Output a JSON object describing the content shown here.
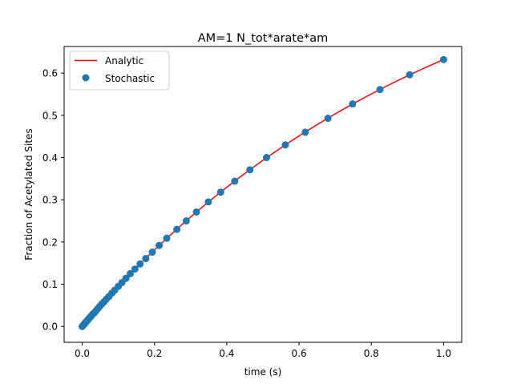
{
  "chart_data": {
    "type": "line",
    "title": "AM=1 N_tot*arate*am",
    "xlabel": "time (s)",
    "ylabel": "Fraction of Acetylated Sites",
    "xlim": [
      -0.05,
      1.05
    ],
    "ylim": [
      -0.0375,
      0.663
    ],
    "xticks": [
      "0.0",
      "0.2",
      "0.4",
      "0.6",
      "0.8",
      "1.0"
    ],
    "yticks": [
      "0.0",
      "0.1",
      "0.2",
      "0.3",
      "0.4",
      "0.5",
      "0.6"
    ],
    "grid": false,
    "legend_position": "upper-left",
    "series": [
      {
        "name": "Analytic",
        "kind": "line",
        "color": "#ff0000",
        "function": "1 - exp(-t)",
        "x_range": [
          0,
          1
        ]
      },
      {
        "name": "Stochastic",
        "kind": "scatter",
        "color": "#1f77b4",
        "x": [
          0.0,
          0.002,
          0.004,
          0.006,
          0.008,
          0.01,
          0.012,
          0.015,
          0.018,
          0.021,
          0.025,
          0.029,
          0.033,
          0.038,
          0.043,
          0.048,
          0.054,
          0.06,
          0.067,
          0.074,
          0.082,
          0.09,
          0.1,
          0.11,
          0.121,
          0.133,
          0.146,
          0.16,
          0.176,
          0.194,
          0.213,
          0.234,
          0.262,
          0.288,
          0.316,
          0.349,
          0.383,
          0.422,
          0.464,
          0.51,
          0.562,
          0.617,
          0.68,
          0.748,
          0.824,
          0.906,
          1.0
        ],
        "y": [
          0.0,
          0.002,
          0.004,
          0.006,
          0.008,
          0.01,
          0.012,
          0.015,
          0.018,
          0.021,
          0.025,
          0.029,
          0.032,
          0.037,
          0.042,
          0.047,
          0.053,
          0.058,
          0.065,
          0.071,
          0.079,
          0.086,
          0.095,
          0.104,
          0.114,
          0.125,
          0.136,
          0.148,
          0.161,
          0.176,
          0.192,
          0.209,
          0.23,
          0.25,
          0.271,
          0.295,
          0.318,
          0.344,
          0.371,
          0.4,
          0.43,
          0.46,
          0.493,
          0.527,
          0.561,
          0.596,
          0.632
        ]
      }
    ]
  }
}
